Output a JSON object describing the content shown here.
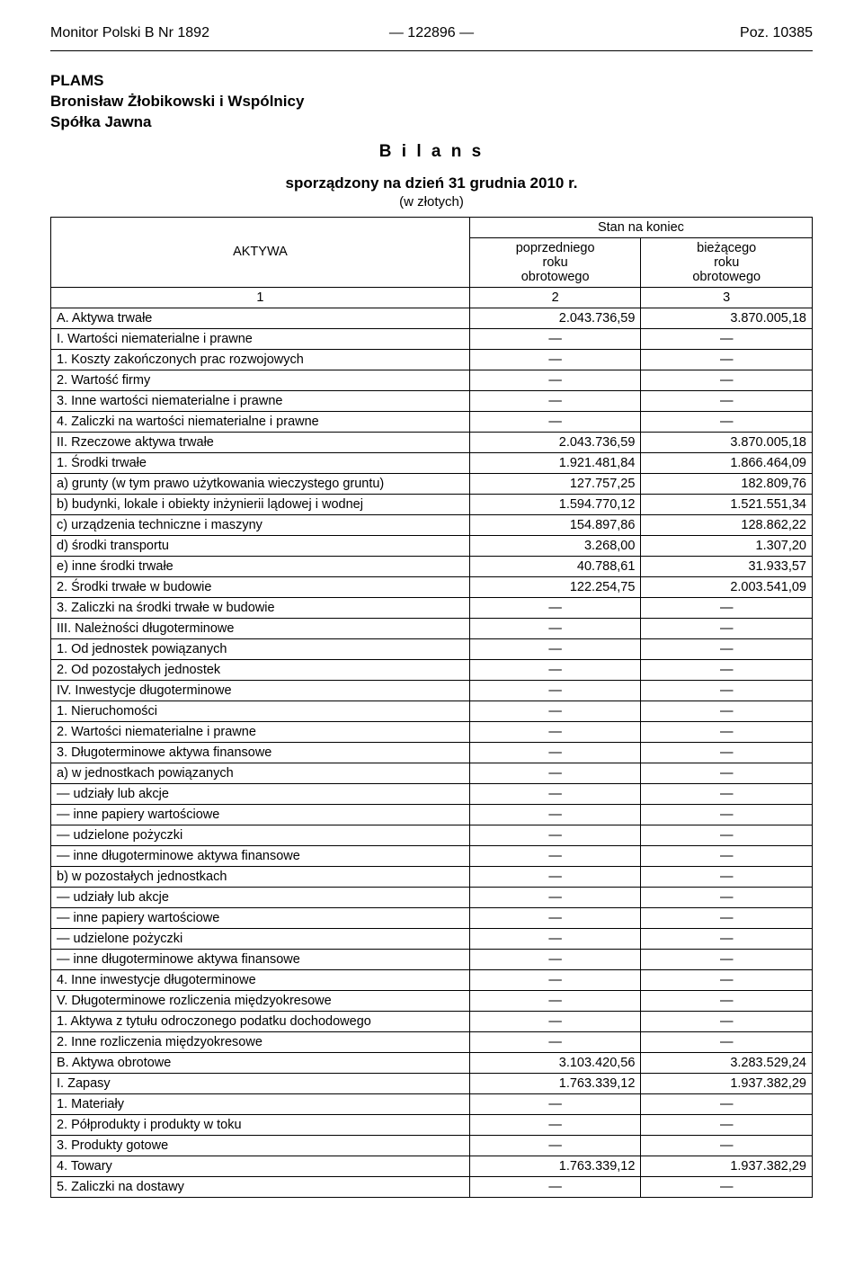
{
  "header": {
    "left": "Monitor Polski B Nr 1892",
    "center": "— 122896 —",
    "right": "Poz. 10385"
  },
  "company": {
    "line1": "PLAMS",
    "line2": "Bronisław Żłobikowski i Wspólnicy",
    "line3": "Spółka Jawna"
  },
  "title": "B i l a n s",
  "subtitle": "sporządzony na dzień 31 grudnia 2010 r.",
  "units": "(w złotych)",
  "table": {
    "head": {
      "col1": "AKTYWA",
      "top_span": "Stan na koniec",
      "col2": "poprzedniego\nroku\nobrotowego",
      "col3": "bieżącego\nroku\nobrotowego",
      "n1": "1",
      "n2": "2",
      "n3": "3"
    },
    "rows": [
      {
        "label": "A. Aktywa trwałe",
        "ind": 0,
        "v1": "2.043.736,59",
        "v2": "3.870.005,18"
      },
      {
        "label": "I. Wartości niematerialne i prawne",
        "ind": 1,
        "v1": "—",
        "v2": "—"
      },
      {
        "label": "1. Koszty zakończonych prac rozwojowych",
        "ind": 2,
        "v1": "—",
        "v2": "—"
      },
      {
        "label": "2. Wartość firmy",
        "ind": 2,
        "v1": "—",
        "v2": "—"
      },
      {
        "label": "3. Inne wartości niematerialne i prawne",
        "ind": 2,
        "v1": "—",
        "v2": "—"
      },
      {
        "label": "4. Zaliczki na wartości niematerialne i prawne",
        "ind": 2,
        "v1": "—",
        "v2": "—"
      },
      {
        "label": "II. Rzeczowe aktywa trwałe",
        "ind": 1,
        "v1": "2.043.736,59",
        "v2": "3.870.005,18"
      },
      {
        "label": "1. Środki trwałe",
        "ind": 2,
        "v1": "1.921.481,84",
        "v2": "1.866.464,09"
      },
      {
        "label": "a) grunty (w tym prawo użytkowania wieczystego gruntu)",
        "ind": 3,
        "v1": "127.757,25",
        "v2": "182.809,76"
      },
      {
        "label": "b) budynki, lokale i obiekty inżynierii lądowej i wodnej",
        "ind": 3,
        "v1": "1.594.770,12",
        "v2": "1.521.551,34"
      },
      {
        "label": "c) urządzenia techniczne i maszyny",
        "ind": 3,
        "v1": "154.897,86",
        "v2": "128.862,22"
      },
      {
        "label": "d) środki transportu",
        "ind": 3,
        "v1": "3.268,00",
        "v2": "1.307,20"
      },
      {
        "label": "e) inne środki trwałe",
        "ind": 3,
        "v1": "40.788,61",
        "v2": "31.933,57"
      },
      {
        "label": "2. Środki trwałe w budowie",
        "ind": 2,
        "v1": "122.254,75",
        "v2": "2.003.541,09"
      },
      {
        "label": "3. Zaliczki na środki trwałe w budowie",
        "ind": 2,
        "v1": "—",
        "v2": "—"
      },
      {
        "label": "III. Należności długoterminowe",
        "ind": 1,
        "v1": "—",
        "v2": "—"
      },
      {
        "label": "1. Od jednostek powiązanych",
        "ind": 2,
        "v1": "—",
        "v2": "—"
      },
      {
        "label": "2. Od pozostałych jednostek",
        "ind": 2,
        "v1": "—",
        "v2": "—"
      },
      {
        "label": "IV. Inwestycje długoterminowe",
        "ind": 1,
        "v1": "—",
        "v2": "—"
      },
      {
        "label": "1. Nieruchomości",
        "ind": 2,
        "v1": "—",
        "v2": "—"
      },
      {
        "label": "2. Wartości niematerialne i prawne",
        "ind": 2,
        "v1": "—",
        "v2": "—"
      },
      {
        "label": "3. Długoterminowe aktywa finansowe",
        "ind": 2,
        "v1": "—",
        "v2": "—"
      },
      {
        "label": "a) w jednostkach powiązanych",
        "ind": 3,
        "v1": "—",
        "v2": "—"
      },
      {
        "label": "— udziały lub akcje",
        "ind": 4,
        "v1": "—",
        "v2": "—"
      },
      {
        "label": "— inne papiery wartościowe",
        "ind": 4,
        "v1": "—",
        "v2": "—"
      },
      {
        "label": "— udzielone pożyczki",
        "ind": 4,
        "v1": "—",
        "v2": "—"
      },
      {
        "label": "— inne długoterminowe aktywa finansowe",
        "ind": 4,
        "v1": "—",
        "v2": "—"
      },
      {
        "label": "b) w pozostałych jednostkach",
        "ind": 3,
        "v1": "—",
        "v2": "—"
      },
      {
        "label": "— udziały lub akcje",
        "ind": 4,
        "v1": "—",
        "v2": "—"
      },
      {
        "label": "— inne papiery wartościowe",
        "ind": 4,
        "v1": "—",
        "v2": "—"
      },
      {
        "label": "— udzielone pożyczki",
        "ind": 4,
        "v1": "—",
        "v2": "—"
      },
      {
        "label": "— inne długoterminowe aktywa finansowe",
        "ind": 4,
        "v1": "—",
        "v2": "—"
      },
      {
        "label": "4. Inne inwestycje długoterminowe",
        "ind": 2,
        "v1": "—",
        "v2": "—"
      },
      {
        "label": "V. Długoterminowe rozliczenia międzyokresowe",
        "ind": 1,
        "v1": "—",
        "v2": "—"
      },
      {
        "label": "1. Aktywa z tytułu odroczonego podatku dochodowego",
        "ind": 2,
        "v1": "—",
        "v2": "—"
      },
      {
        "label": "2. Inne rozliczenia międzyokresowe",
        "ind": 2,
        "v1": "—",
        "v2": "—"
      },
      {
        "label": "B. Aktywa obrotowe",
        "ind": 0,
        "v1": "3.103.420,56",
        "v2": "3.283.529,24"
      },
      {
        "label": "I. Zapasy",
        "ind": 1,
        "v1": "1.763.339,12",
        "v2": "1.937.382,29"
      },
      {
        "label": "1. Materiały",
        "ind": 2,
        "v1": "—",
        "v2": "—"
      },
      {
        "label": "2. Półprodukty i produkty w toku",
        "ind": 2,
        "v1": "—",
        "v2": "—"
      },
      {
        "label": "3. Produkty gotowe",
        "ind": 2,
        "v1": "—",
        "v2": "—"
      },
      {
        "label": "4. Towary",
        "ind": 2,
        "v1": "1.763.339,12",
        "v2": "1.937.382,29"
      },
      {
        "label": "5. Zaliczki na dostawy",
        "ind": 2,
        "v1": "—",
        "v2": "—"
      }
    ]
  }
}
